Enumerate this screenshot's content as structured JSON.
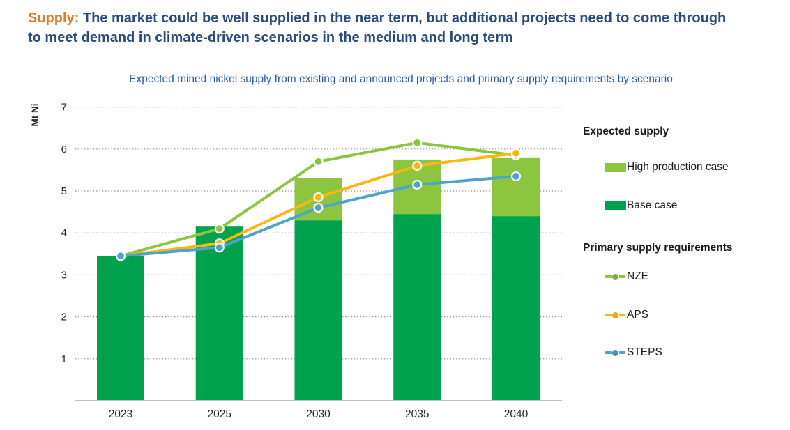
{
  "header": {
    "prefix": "Supply:",
    "text": "The market could be well supplied in the near term, but additional projects need to come through to meet demand in climate-driven scenarios in the medium and long term",
    "prefix_color": "#E07B28",
    "text_color": "#2A4B7C"
  },
  "legend": {
    "supply_header": "Expected supply",
    "supply_items": [
      {
        "label": "High production case",
        "color": "#8CC540"
      },
      {
        "label": "Base case",
        "color": "#00A24D"
      }
    ],
    "requirements_header": "Primary supply requirements",
    "requirement_items": [
      {
        "label": "NZE",
        "color": "#8CC540",
        "dot": "#74B438"
      },
      {
        "label": "APS",
        "color": "#FDB714",
        "dot": "#F5A40E"
      },
      {
        "label": "STEPS",
        "color": "#4CA5C8",
        "dot": "#3D95BB"
      }
    ]
  },
  "chart_data": {
    "type": "bar",
    "subtype": "stacked bars with overlaid line series",
    "title": "Expected mined nickel supply from existing and announced projects and primary supply requirements by scenario",
    "title_color": "#2B5AA5",
    "ylabel": "Mt Ni",
    "xlabel": "",
    "ylim": [
      0,
      7
    ],
    "yticks": [
      1,
      2,
      3,
      4,
      5,
      6,
      7
    ],
    "grid": "dotted horizontal gridlines",
    "legend_position": "right",
    "categories": [
      "2023",
      "2025",
      "2030",
      "2035",
      "2040"
    ],
    "bar_series": [
      {
        "name": "Base case",
        "values": [
          3.45,
          4.15,
          4.3,
          4.45,
          4.4
        ],
        "color": "#00A24D"
      },
      {
        "name": "High production case",
        "values": [
          0,
          0,
          1.0,
          1.3,
          1.4
        ],
        "color": "#8CC540",
        "note": "stacked on Base case; stack totals 3.45, 4.15, 5.3, 5.75, 5.8"
      }
    ],
    "line_series": [
      {
        "name": "NZE",
        "values": [
          3.45,
          4.1,
          5.7,
          6.15,
          5.85
        ],
        "color": "#8CC540"
      },
      {
        "name": "APS",
        "values": [
          3.45,
          3.75,
          4.85,
          5.6,
          5.9
        ],
        "color": "#FDB714"
      },
      {
        "name": "STEPS",
        "values": [
          3.45,
          3.65,
          4.6,
          5.15,
          5.35
        ],
        "color": "#4CA5C8"
      }
    ],
    "axis_text_color": "#262626",
    "gridline_color": "#8C8C8C",
    "baseline_color": "#BFBFBF"
  }
}
